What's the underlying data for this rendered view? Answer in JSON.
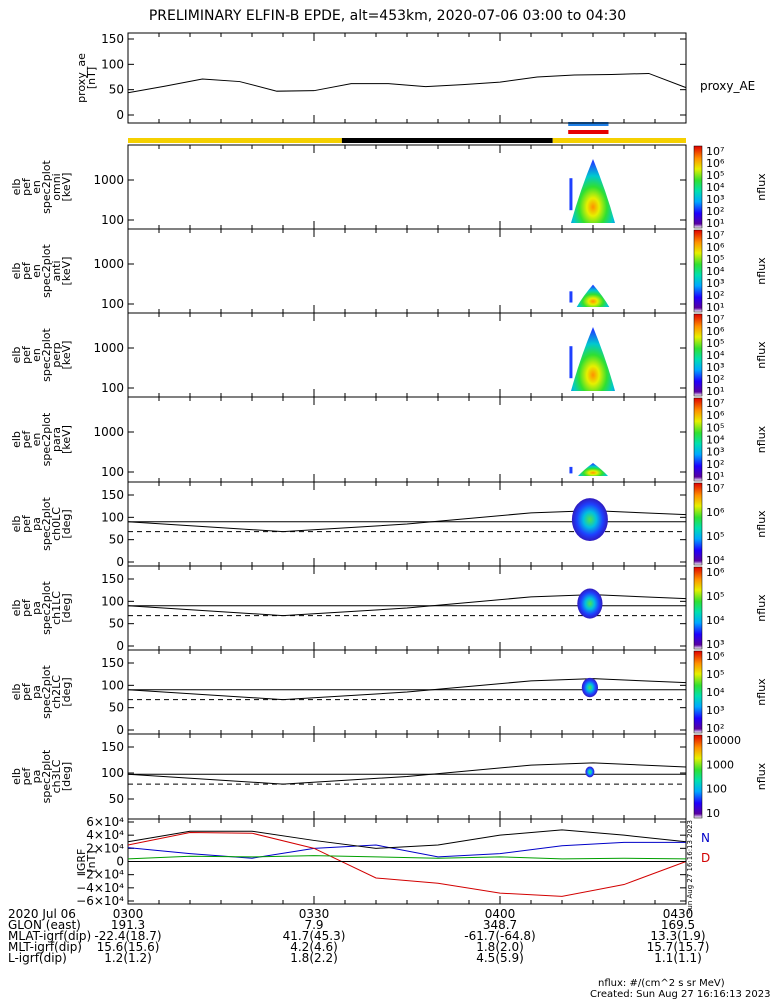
{
  "title": "PRELIMINARY ELFIN-B EPDE, alt=453km, 2020-07-06 03:00 to 04:30",
  "colors": {
    "sunlight_bar": "#f5d000",
    "shadow_bar": "#000000",
    "science_zone_blue": "#1e7fe6",
    "science_zone_red": "#e60000",
    "grf_n": "#0000c8",
    "grf_d": "#d20000",
    "grf_e": "#00a000",
    "grf_total": "#000000"
  },
  "time_axis": {
    "start": "03:00",
    "end": "04:30",
    "tick_labels": [
      "0300",
      "0330",
      "0400",
      "0430"
    ],
    "minor_ticks_every_min": 5
  },
  "panels": [
    {
      "id": "proxy_ae",
      "ylabel": [
        "proxy_ae",
        "[nT]"
      ],
      "yticks": [
        "150",
        "100",
        "50",
        "0"
      ],
      "right_label": "proxy_AE"
    },
    {
      "id": "en_omni",
      "ylabel": [
        "elb",
        "pef",
        "en",
        "spec2plot",
        "omni",
        "[keV]"
      ],
      "yticks": [
        "1000",
        "100"
      ],
      "colorbar_ticks": [
        "10⁷",
        "10⁶",
        "10⁵",
        "10⁴",
        "10³",
        "10²",
        "10¹"
      ],
      "colorbar_label": "nflux"
    },
    {
      "id": "en_anti",
      "ylabel": [
        "elb",
        "pef",
        "en",
        "spec2plot",
        "anti",
        "[keV]"
      ],
      "yticks": [
        "1000",
        "100"
      ],
      "colorbar_ticks": [
        "10⁷",
        "10⁶",
        "10⁵",
        "10⁴",
        "10³",
        "10²",
        "10¹"
      ],
      "colorbar_label": "nflux"
    },
    {
      "id": "en_perp",
      "ylabel": [
        "elb",
        "pef",
        "en",
        "spec2plot",
        "perp",
        "[keV]"
      ],
      "yticks": [
        "1000",
        "100"
      ],
      "colorbar_ticks": [
        "10⁷",
        "10⁶",
        "10⁵",
        "10⁴",
        "10³",
        "10²",
        "10¹"
      ],
      "colorbar_label": "nflux"
    },
    {
      "id": "en_para",
      "ylabel": [
        "elb",
        "pef",
        "en",
        "spec2plot",
        "para",
        "[keV]"
      ],
      "yticks": [
        "1000",
        "100"
      ],
      "colorbar_ticks": [
        "10⁷",
        "10⁶",
        "10⁵",
        "10⁴",
        "10³",
        "10²",
        "10¹"
      ],
      "colorbar_label": "nflux"
    },
    {
      "id": "pa_ch0",
      "ylabel": [
        "elb",
        "pef",
        "pa",
        "spec2plot",
        "ch0LC",
        "[deg]"
      ],
      "yticks": [
        "150",
        "100",
        "50",
        "0"
      ],
      "colorbar_ticks": [
        "10⁷",
        "10⁶",
        "10⁵",
        "10⁴"
      ],
      "colorbar_label": "nflux"
    },
    {
      "id": "pa_ch1",
      "ylabel": [
        "elb",
        "pef",
        "pa",
        "spec2plot",
        "ch1LC",
        "[deg]"
      ],
      "yticks": [
        "150",
        "100",
        "50",
        "0"
      ],
      "colorbar_ticks": [
        "10⁶",
        "10⁵",
        "10⁴",
        "10³"
      ],
      "colorbar_label": "nflux"
    },
    {
      "id": "pa_ch2",
      "ylabel": [
        "elb",
        "pef",
        "pa",
        "spec2plot",
        "ch2LC",
        "[deg]"
      ],
      "yticks": [
        "150",
        "100",
        "50",
        "0"
      ],
      "colorbar_ticks": [
        "10⁶",
        "10⁵",
        "10⁴",
        "10³",
        "10²"
      ],
      "colorbar_label": "nflux"
    },
    {
      "id": "pa_ch3",
      "ylabel": [
        "elb",
        "pef",
        "pa",
        "spec2plot",
        "ch3LC",
        "[deg]"
      ],
      "yticks": [
        "150",
        "100",
        "50"
      ],
      "colorbar_ticks": [
        "10000",
        "1000",
        "100",
        "10"
      ],
      "colorbar_label": "nflux"
    },
    {
      "id": "igrf",
      "ylabel": [
        "IGRF",
        "[nT]"
      ],
      "yticks": [
        "6×10⁴",
        "4×10⁴",
        "2×10⁴",
        "0",
        "−2×10⁴",
        "−4×10⁴",
        "−6×10⁴"
      ],
      "legend": [
        "N",
        "D"
      ],
      "stamp": "Sun Aug 27 16:16:13 2023"
    }
  ],
  "chart_data": [
    {
      "type": "line",
      "title": "PRELIMINARY ELFIN-B EPDE, alt=453km, 2020-07-06 03:00 to 04:30",
      "ylabel": "proxy_ae [nT]",
      "ylim": [
        0,
        150
      ],
      "x": [
        "03:00",
        "03:06",
        "03:12",
        "03:18",
        "03:24",
        "03:30",
        "03:36",
        "03:42",
        "03:48",
        "03:54",
        "04:00",
        "04:06",
        "04:12",
        "04:18",
        "04:24",
        "04:30"
      ],
      "series": [
        {
          "name": "proxy_AE",
          "values": [
            44,
            57,
            71,
            66,
            47,
            48,
            62,
            62,
            56,
            60,
            65,
            75,
            79,
            80,
            82,
            54
          ]
        }
      ]
    },
    {
      "type": "heatmap",
      "ylabel": "[keV]",
      "ylim": [
        50,
        7000
      ],
      "note": "electron energy spectra (omni/anti/perp/para), flux burst ~04:10-04:15"
    },
    {
      "type": "line",
      "ylabel": "IGRF [nT]",
      "ylim": [
        -60000,
        60000
      ],
      "x": [
        "03:00",
        "03:10",
        "03:20",
        "03:30",
        "03:40",
        "03:50",
        "04:00",
        "04:10",
        "04:20",
        "04:30"
      ],
      "series": [
        {
          "name": "N",
          "values": [
            21000,
            12000,
            5000,
            20000,
            25000,
            7000,
            12000,
            24000,
            29000,
            29000
          ]
        },
        {
          "name": "D",
          "values": [
            25000,
            44000,
            43000,
            20000,
            -25000,
            -33000,
            -48000,
            -53000,
            -35000,
            0
          ]
        },
        {
          "name": "",
          "values": [
            4000,
            8000,
            7000,
            9000,
            7000,
            5000,
            7000,
            4000,
            5000,
            4000
          ]
        },
        {
          "name": "",
          "values": [
            30000,
            46000,
            46000,
            32000,
            20000,
            25000,
            40000,
            48000,
            40000,
            30000
          ]
        }
      ]
    }
  ],
  "ephemeris": {
    "rows": [
      {
        "label": "2020 Jul 06",
        "values": [
          "0300",
          "0330",
          "0400",
          "0430"
        ]
      },
      {
        "label": "GLON (east)",
        "values": [
          "191.3",
          "7.9",
          "348.7",
          "169.5"
        ]
      },
      {
        "label": "MLAT-igrf(dip)",
        "values": [
          "-22.4(18.7)",
          "41.7(45.3)",
          "-61.7(-64.8)",
          "13.3(1.9)"
        ]
      },
      {
        "label": "MLT-igrf(dip)",
        "values": [
          "15.6(15.6)",
          "4.2(4.6)",
          "1.8(2.0)",
          "15.7(15.7)"
        ]
      },
      {
        "label": "L-igrf(dip)",
        "values": [
          "1.2(1.2)",
          "1.8(2.2)",
          "4.5(5.9)",
          "1.1(1.1)"
        ]
      }
    ]
  },
  "footer": {
    "units": "nflux: #/(cm^2 s sr MeV)",
    "created": "Created: Sun Aug 27 16:16:13 2023"
  }
}
